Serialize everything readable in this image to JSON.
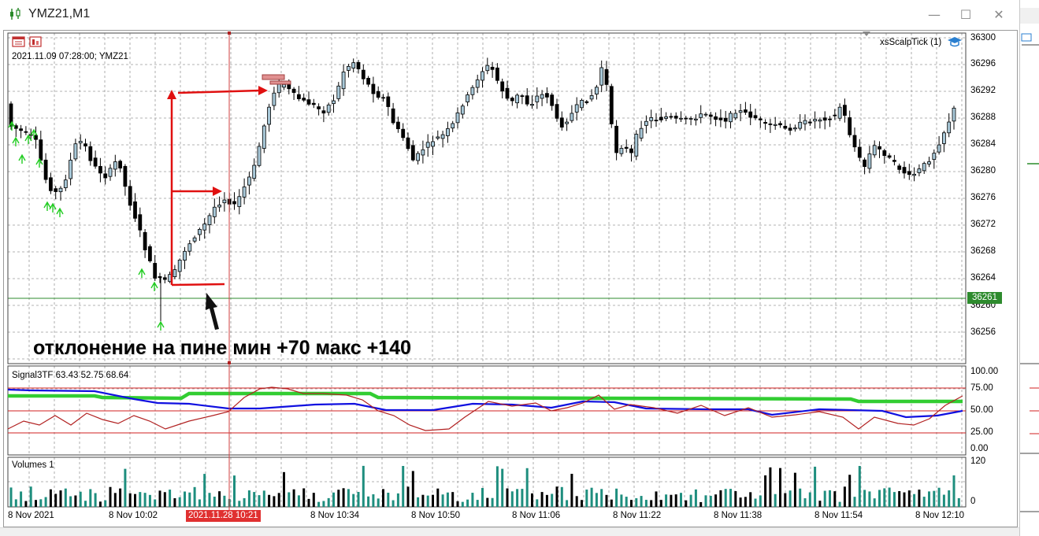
{
  "window": {
    "title": "YMZ21,M1",
    "minimize_glyph": "—",
    "maximize_glyph": "☐",
    "close_glyph": "✕"
  },
  "chart": {
    "info": "2021.11.09 07:28:00; YMZ21",
    "indicator_name": "xsScalpTick (1)",
    "annotation": "отклонение на пине мин +70 макс +140",
    "current_price": "36261",
    "crosshair_time": "2021.11.28 10:21",
    "price_axis": [
      "36300",
      "36296",
      "36292",
      "36288",
      "36284",
      "36280",
      "36276",
      "36272",
      "36268",
      "36264",
      "36260",
      "36256"
    ],
    "time_axis": [
      "8 Nov 2021",
      "8 Nov 10:02",
      "8 Nov 10:34",
      "8 Nov 10:50",
      "8 Nov 11:06",
      "8 Nov 11:22",
      "8 Nov 11:38",
      "8 Nov 11:54",
      "8 Nov 12:10"
    ]
  },
  "signal_pane": {
    "title": "Signal3TF 63.43 52.75 68.64",
    "axis": [
      "100.00",
      "75.00",
      "50.00",
      "25.00",
      "0.00"
    ]
  },
  "volume_pane": {
    "title": "Volumes 1",
    "axis_top": "120",
    "axis_bottom": "0"
  },
  "colors": {
    "bull_fill": "#a8c8d8",
    "bear_fill": "#000000",
    "grid": "#9a9a9a",
    "annotation_red": "#e01010",
    "green_line": "#32cd32",
    "blue_line": "#1010e0",
    "brown_line": "#b22222",
    "volume_teal": "#1e8e7e"
  }
}
